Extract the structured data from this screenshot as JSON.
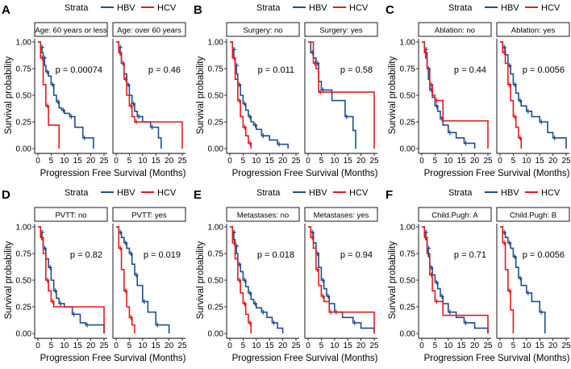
{
  "figure": {
    "strata_label": "Strata",
    "xlabel": "Progression Free Survival (Months)",
    "ylabel": "Survival probability",
    "xticks": [
      0,
      5,
      10,
      15,
      20,
      25
    ],
    "yticks": [
      "0.00",
      "0.25",
      "0.50",
      "0.75",
      "1.00"
    ],
    "colors": {
      "HBV": "#1f4e8c",
      "HCV": "#e41a1c"
    }
  },
  "chart_data": [
    {
      "type": "line",
      "panel_letter": "A",
      "legend": [
        "HBV",
        "HCV"
      ],
      "xlim": [
        0,
        25
      ],
      "ylim": [
        0,
        1
      ],
      "facets": [
        {
          "title": "Age: 60 years or less",
          "pvalue": "p = 0.00074",
          "series": [
            {
              "name": "HBV",
              "x": [
                0,
                1,
                1.5,
                2,
                2.5,
                3,
                4,
                5,
                6,
                7,
                8,
                9,
                10,
                12,
                14,
                17,
                21
              ],
              "y": [
                1,
                0.95,
                0.9,
                0.85,
                0.78,
                0.72,
                0.68,
                0.6,
                0.5,
                0.44,
                0.38,
                0.36,
                0.33,
                0.3,
                0.2,
                0.1,
                0
              ]
            },
            {
              "name": "HCV",
              "x": [
                0,
                1,
                2,
                3,
                4,
                8
              ],
              "y": [
                1,
                0.85,
                0.6,
                0.4,
                0.22,
                0
              ]
            }
          ]
        },
        {
          "title": "Age: over 60 years",
          "pvalue": "p = 0.46",
          "series": [
            {
              "name": "HBV",
              "x": [
                0,
                1,
                1.5,
                2,
                3,
                4,
                5,
                6,
                7,
                8,
                10,
                13,
                16,
                17
              ],
              "y": [
                1,
                0.95,
                0.88,
                0.8,
                0.7,
                0.6,
                0.5,
                0.42,
                0.35,
                0.3,
                0.25,
                0.2,
                0.1,
                0
              ]
            },
            {
              "name": "HCV",
              "x": [
                0,
                1,
                2,
                3,
                4,
                5,
                6,
                7,
                25
              ],
              "y": [
                1,
                0.9,
                0.8,
                0.65,
                0.5,
                0.4,
                0.3,
                0.25,
                0
              ]
            }
          ]
        }
      ]
    },
    {
      "type": "line",
      "panel_letter": "B",
      "legend": [
        "HBV",
        "HCV"
      ],
      "xlim": [
        0,
        25
      ],
      "ylim": [
        0,
        1
      ],
      "facets": [
        {
          "title": "Surgery: no",
          "pvalue": "p = 0.011",
          "series": [
            {
              "name": "HBV",
              "x": [
                0,
                1,
                1.5,
                2,
                2.5,
                3,
                4,
                5,
                6,
                7,
                8,
                9,
                10,
                12,
                15,
                18,
                22
              ],
              "y": [
                1,
                0.93,
                0.85,
                0.78,
                0.7,
                0.6,
                0.5,
                0.42,
                0.36,
                0.3,
                0.25,
                0.22,
                0.18,
                0.12,
                0.08,
                0.04,
                0
              ]
            },
            {
              "name": "HCV",
              "x": [
                0,
                1,
                2,
                3,
                4,
                5,
                6,
                7,
                8
              ],
              "y": [
                1,
                0.85,
                0.65,
                0.45,
                0.3,
                0.2,
                0.12,
                0.05,
                0
              ]
            }
          ]
        },
        {
          "title": "Surgery: yes",
          "pvalue": "p = 0.58",
          "series": [
            {
              "name": "HBV",
              "x": [
                0,
                1,
                2,
                3,
                4,
                5,
                9,
                14,
                17,
                18
              ],
              "y": [
                1,
                0.9,
                0.85,
                0.8,
                0.63,
                0.55,
                0.45,
                0.3,
                0.17,
                0
              ]
            },
            {
              "name": "HCV",
              "x": [
                0,
                2,
                3,
                4,
                25
              ],
              "y": [
                1,
                0.8,
                0.75,
                0.53,
                0
              ]
            }
          ]
        }
      ]
    },
    {
      "type": "line",
      "panel_letter": "C",
      "legend": [
        "HBV",
        "HCV"
      ],
      "xlim": [
        0,
        25
      ],
      "ylim": [
        0,
        1
      ],
      "facets": [
        {
          "title": "Ablation: no",
          "pvalue": "p = 0.44",
          "series": [
            {
              "name": "HBV",
              "x": [
                0,
                1,
                1.5,
                2,
                2.5,
                3,
                4,
                5,
                6,
                7,
                8,
                10,
                13,
                16,
                20
              ],
              "y": [
                1,
                0.93,
                0.85,
                0.75,
                0.65,
                0.55,
                0.48,
                0.4,
                0.35,
                0.28,
                0.22,
                0.15,
                0.1,
                0.05,
                0
              ]
            },
            {
              "name": "HCV",
              "x": [
                0,
                1,
                2,
                3,
                4,
                5,
                8,
                25
              ],
              "y": [
                1,
                0.9,
                0.75,
                0.6,
                0.5,
                0.45,
                0.26,
                0
              ]
            }
          ]
        },
        {
          "title": "Ablation: yes",
          "pvalue": "p = 0.0056",
          "series": [
            {
              "name": "HBV",
              "x": [
                0,
                1,
                2,
                3,
                4,
                5,
                6,
                7,
                8,
                10,
                12,
                15,
                18,
                20,
                25
              ],
              "y": [
                1,
                0.95,
                0.88,
                0.78,
                0.7,
                0.6,
                0.52,
                0.45,
                0.4,
                0.35,
                0.3,
                0.25,
                0.15,
                0.1,
                0
              ]
            },
            {
              "name": "HCV",
              "x": [
                0,
                1,
                2,
                3,
                4,
                5,
                6,
                7,
                8
              ],
              "y": [
                1,
                0.9,
                0.8,
                0.6,
                0.45,
                0.3,
                0.2,
                0.1,
                0
              ]
            }
          ]
        }
      ]
    },
    {
      "type": "line",
      "panel_letter": "D",
      "legend": [
        "HBV",
        "HCV"
      ],
      "xlim": [
        0,
        25
      ],
      "ylim": [
        0,
        1
      ],
      "facets": [
        {
          "title": "PVTT: no",
          "pvalue": "p = 0.82",
          "series": [
            {
              "name": "HBV",
              "x": [
                0,
                1,
                1.5,
                2,
                3,
                4,
                5,
                6,
                7,
                8,
                10,
                13,
                16,
                18,
                25
              ],
              "y": [
                1,
                0.95,
                0.88,
                0.8,
                0.7,
                0.62,
                0.5,
                0.4,
                0.33,
                0.28,
                0.25,
                0.18,
                0.1,
                0.08,
                0
              ]
            },
            {
              "name": "HCV",
              "x": [
                0,
                1,
                2,
                3,
                4,
                5,
                6,
                25
              ],
              "y": [
                1,
                0.9,
                0.75,
                0.5,
                0.4,
                0.3,
                0.25,
                0
              ]
            }
          ]
        },
        {
          "title": "PVTT: yes",
          "pvalue": "p = 0.019",
          "series": [
            {
              "name": "HBV",
              "x": [
                0,
                1,
                2,
                3,
                4,
                5,
                6,
                7,
                8,
                10,
                12,
                15,
                20
              ],
              "y": [
                1,
                0.95,
                0.9,
                0.85,
                0.8,
                0.75,
                0.65,
                0.55,
                0.45,
                0.3,
                0.2,
                0.08,
                0
              ]
            },
            {
              "name": "HCV",
              "x": [
                0,
                1,
                2,
                3,
                4,
                5,
                6,
                7
              ],
              "y": [
                1,
                0.8,
                0.6,
                0.4,
                0.25,
                0.15,
                0.08,
                0
              ]
            }
          ]
        }
      ]
    },
    {
      "type": "line",
      "panel_letter": "E",
      "legend": [
        "HBV",
        "HCV"
      ],
      "xlim": [
        0,
        25
      ],
      "ylim": [
        0,
        1
      ],
      "facets": [
        {
          "title": "Metastases: no",
          "pvalue": "p = 0.018",
          "series": [
            {
              "name": "HBV",
              "x": [
                0,
                1,
                1.5,
                2,
                2.5,
                3,
                4,
                5,
                6,
                7,
                8,
                9,
                10,
                12,
                14,
                16,
                18,
                20
              ],
              "y": [
                1,
                0.95,
                0.88,
                0.82,
                0.75,
                0.65,
                0.58,
                0.5,
                0.44,
                0.38,
                0.32,
                0.28,
                0.24,
                0.2,
                0.15,
                0.1,
                0.05,
                0
              ]
            },
            {
              "name": "HCV",
              "x": [
                0,
                1,
                2,
                3,
                4,
                5,
                6,
                7,
                8
              ],
              "y": [
                1,
                0.85,
                0.7,
                0.5,
                0.38,
                0.28,
                0.18,
                0.1,
                0
              ]
            }
          ]
        },
        {
          "title": "Metastases: yes",
          "pvalue": "p = 0.94",
          "series": [
            {
              "name": "HBV",
              "x": [
                0,
                1,
                2,
                3,
                4,
                5,
                6,
                7,
                8,
                10,
                13,
                17,
                20,
                25
              ],
              "y": [
                1,
                0.95,
                0.85,
                0.75,
                0.62,
                0.5,
                0.42,
                0.35,
                0.28,
                0.2,
                0.15,
                0.1,
                0.05,
                0
              ]
            },
            {
              "name": "HCV",
              "x": [
                0,
                1,
                2,
                3,
                4,
                5,
                6,
                8,
                25
              ],
              "y": [
                1,
                0.9,
                0.8,
                0.6,
                0.45,
                0.35,
                0.3,
                0.2,
                0
              ]
            }
          ]
        }
      ]
    },
    {
      "type": "line",
      "panel_letter": "F",
      "legend": [
        "HBV",
        "HCV"
      ],
      "xlim": [
        0,
        25
      ],
      "ylim": [
        0,
        1
      ],
      "facets": [
        {
          "title": "Child.Pugh: A",
          "pvalue": "p = 0.71",
          "series": [
            {
              "name": "HBV",
              "x": [
                0,
                1,
                1.5,
                2,
                2.5,
                3,
                4,
                5,
                6,
                7,
                8,
                10,
                13,
                16,
                20,
                25
              ],
              "y": [
                1,
                0.95,
                0.88,
                0.8,
                0.72,
                0.62,
                0.55,
                0.48,
                0.42,
                0.35,
                0.28,
                0.2,
                0.15,
                0.1,
                0.05,
                0
              ]
            },
            {
              "name": "HCV",
              "x": [
                0,
                1,
                2,
                3,
                4,
                5,
                8,
                25
              ],
              "y": [
                1,
                0.9,
                0.75,
                0.55,
                0.4,
                0.3,
                0.17,
                0
              ]
            }
          ]
        },
        {
          "title": "Child.Pugh: B",
          "pvalue": "p = 0.0056",
          "series": [
            {
              "name": "HBV",
              "x": [
                0,
                1,
                2,
                3,
                4,
                5,
                6,
                7,
                8,
                10,
                12,
                15,
                17
              ],
              "y": [
                1,
                0.95,
                0.9,
                0.85,
                0.8,
                0.72,
                0.62,
                0.52,
                0.45,
                0.38,
                0.3,
                0.2,
                0
              ]
            },
            {
              "name": "HCV",
              "x": [
                0,
                1,
                2,
                3,
                4,
                5
              ],
              "y": [
                1,
                0.85,
                0.6,
                0.4,
                0.22,
                0
              ]
            }
          ]
        }
      ]
    }
  ]
}
